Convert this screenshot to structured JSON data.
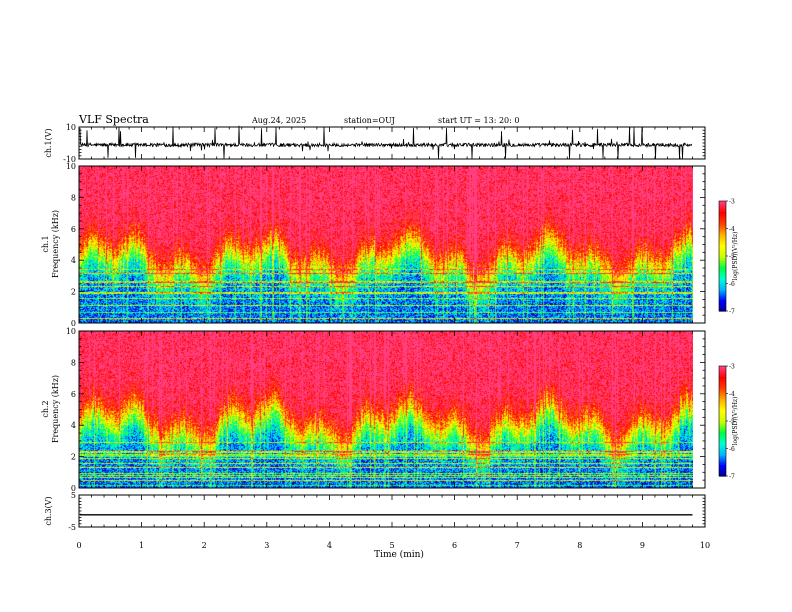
{
  "header": {
    "title": "VLF Spectra",
    "date": "Aug.24, 2025",
    "station": "station=OUJ",
    "start_ut": "start  UT  =   13: 20: 0"
  },
  "chart_data": [
    {
      "type": "line",
      "name": "ch1-waveform",
      "ylabel": "ch.1(V)",
      "ylim": [
        -10,
        10
      ],
      "yticks": [
        -10,
        10
      ],
      "ytick_labels": [
        "-10",
        "10"
      ],
      "baseline": -1.2,
      "trace_end_min": 9.8
    },
    {
      "type": "heatmap",
      "name": "ch1-spectrogram",
      "ylabel": "ch.1\nFrequency  (kHz)",
      "ylim": [
        0,
        10
      ],
      "yticks": [
        0,
        2,
        4,
        6,
        8,
        10
      ],
      "ytick_labels": [
        "0",
        "2",
        "4",
        "6",
        "8",
        "10"
      ],
      "colorbar": {
        "label": "log(PSD)(V²/Hz)",
        "range": [
          -7,
          -3
        ],
        "ticks": [
          -7,
          -6,
          -5,
          -4,
          -3
        ],
        "tick_labels": [
          "-7",
          "-6",
          "-5",
          "-4",
          "-3"
        ]
      }
    },
    {
      "type": "heatmap",
      "name": "ch2-spectrogram",
      "ylabel": "ch.2\nFrequency  (kHz)",
      "ylim": [
        0,
        10
      ],
      "yticks": [
        0,
        2,
        4,
        6,
        8,
        10
      ],
      "ytick_labels": [
        "0",
        "2",
        "4",
        "6",
        "8",
        "10"
      ],
      "colorbar": {
        "label": "log(PSD)(V²/Hz)",
        "range": [
          -7,
          -3
        ],
        "ticks": [
          -7,
          -6,
          -5,
          -4,
          -3
        ],
        "tick_labels": [
          "-7",
          "-6",
          "-5",
          "-4",
          "-3"
        ]
      }
    },
    {
      "type": "line",
      "name": "ch3-waveform",
      "ylabel": "ch.3(V)",
      "ylim": [
        -5,
        5
      ],
      "yticks": [
        -5,
        5
      ],
      "ytick_labels": [
        "-5",
        "5"
      ],
      "baseline": -1.2,
      "trace_end_min": 9.8
    }
  ],
  "xaxis": {
    "label": "Time  (min)",
    "range": [
      0,
      10
    ],
    "ticks": [
      0,
      1,
      2,
      3,
      4,
      5,
      6,
      7,
      8,
      9,
      10
    ],
    "tick_labels": [
      "0",
      "1",
      "2",
      "3",
      "4",
      "5",
      "6",
      "7",
      "8",
      "9",
      "10"
    ]
  },
  "colors": {
    "axis": "#000000",
    "colormap": [
      "#00008c",
      "#0000ff",
      "#00b4ff",
      "#00ffd0",
      "#00ff40",
      "#c8ff00",
      "#ffff00",
      "#ffb000",
      "#ff4000",
      "#ff0000",
      "#ff4080",
      "#ffffff"
    ]
  }
}
